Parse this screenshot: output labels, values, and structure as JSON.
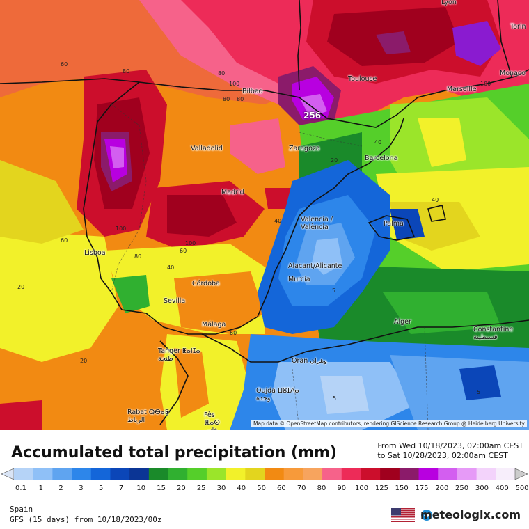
{
  "map": {
    "attribution": "Map data © OpenStreetMap contributors, rendering GIScience Research Group @ Heidelberg University",
    "max_value": "256",
    "cities": [
      {
        "name": "Lyon"
      },
      {
        "name": "Torin"
      },
      {
        "name": "Monaco"
      },
      {
        "name": "Marseille"
      },
      {
        "name": "Toulouse"
      },
      {
        "name": "Bilbao"
      },
      {
        "name": "Valladolid"
      },
      {
        "name": "Zaragoza"
      },
      {
        "name": "Barcelona"
      },
      {
        "name": "Madrid"
      },
      {
        "name": "Valencia / València"
      },
      {
        "name": "Palma"
      },
      {
        "name": "Lisboa"
      },
      {
        "name": "Alacant/Alicante"
      },
      {
        "name": "Murcia"
      },
      {
        "name": "Córdoba"
      },
      {
        "name": "Sevilla"
      },
      {
        "name": "Málaga"
      },
      {
        "name": "Alger"
      },
      {
        "name": "Constantine قسنطينة"
      },
      {
        "name": "Tanger ⵟⴰⵏⵊⴰ طنجة"
      },
      {
        "name": "Oran وهران"
      },
      {
        "name": "Oujda ⵡⵓⵊⴷⴰ وجدة"
      },
      {
        "name": "Rabat ⵕⴱⴰⵟ الرباط"
      },
      {
        "name": "Fès ⴼⴰⵙ فاس"
      }
    ],
    "contour_labels": [
      "60",
      "80",
      "80",
      "100",
      "100",
      "80",
      "80",
      "20",
      "40",
      "40",
      "40",
      "100",
      "60",
      "100",
      "60",
      "40",
      "80",
      "60",
      "20",
      "5",
      "5",
      "5",
      "20"
    ]
  },
  "footer": {
    "title": "Accumulated total precipitation (mm)",
    "from": "From Wed 10/18/2023, 02:00am CEST",
    "to": "to Sat 10/28/2023, 02:00am CEST",
    "region": "Spain",
    "model": "GFS (15 days) from 10/18/2023/00z",
    "brand": "meteologix.com"
  },
  "legend": {
    "ticks": [
      "0.1",
      "1",
      "2",
      "3",
      "5",
      "7",
      "10",
      "15",
      "20",
      "25",
      "30",
      "40",
      "50",
      "60",
      "70",
      "80",
      "90",
      "100",
      "125",
      "150",
      "175",
      "200",
      "250",
      "300",
      "400",
      "500"
    ],
    "colors": [
      "#d9e4f5",
      "#b5d3f7",
      "#8fc0f7",
      "#5fa4f0",
      "#2d86ea",
      "#1466d9",
      "#0b46b8",
      "#0b3595",
      "#1a8a2a",
      "#30b030",
      "#55cf2a",
      "#9be52a",
      "#f2f12a",
      "#e3d51e",
      "#f28a12",
      "#f79a3a",
      "#f7a45e",
      "#f6628a",
      "#ed2b58",
      "#cc0e2c",
      "#a0001e",
      "#8b1b6a",
      "#b800e0",
      "#d35ef0",
      "#e69af7",
      "#f3d3fb",
      "#f7eefb",
      "#cccccc"
    ]
  },
  "colors": {
    "sea": "#cbe0f7",
    "dark_red": "#9b0a2a",
    "purple": "#8a1bd0"
  }
}
